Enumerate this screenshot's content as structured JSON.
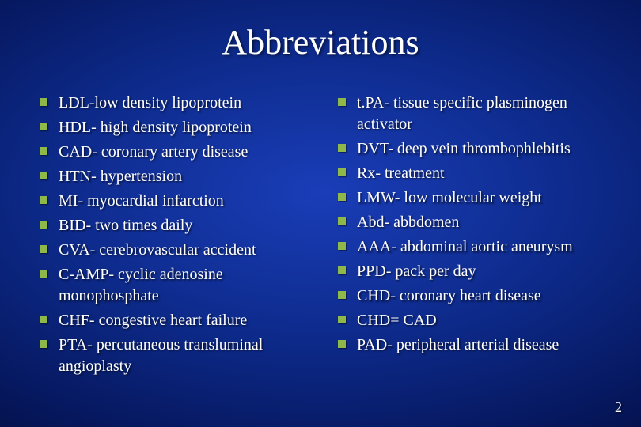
{
  "slide": {
    "title": "Abbreviations",
    "page_number": "2",
    "background_gradient": [
      "#1a3db8",
      "#0d2a8a",
      "#061860",
      "#020830",
      "#000010"
    ],
    "bullet_color": "#8fb84a",
    "text_color": "#ffffff",
    "title_fontsize": 44,
    "body_fontsize": 20,
    "font_family": "Times New Roman",
    "left_items": [
      "LDL-low density lipoprotein",
      "HDL- high density lipoprotein",
      "CAD- coronary artery disease",
      "HTN- hypertension",
      "MI- myocardial infarction",
      "BID- two times daily",
      "CVA- cerebrovascular accident",
      "C-AMP- cyclic adenosine monophosphate",
      "CHF- congestive heart failure",
      "PTA- percutaneous transluminal angioplasty"
    ],
    "right_items": [
      "t.PA- tissue specific plasminogen activator",
      "DVT- deep vein thrombophlebitis",
      "Rx- treatment",
      "LMW- low molecular weight",
      "Abd- abbdomen",
      "AAA- abdominal aortic aneurysm",
      "PPD- pack per day",
      "CHD- coronary heart disease",
      "CHD= CAD",
      "PAD- peripheral arterial disease"
    ]
  }
}
